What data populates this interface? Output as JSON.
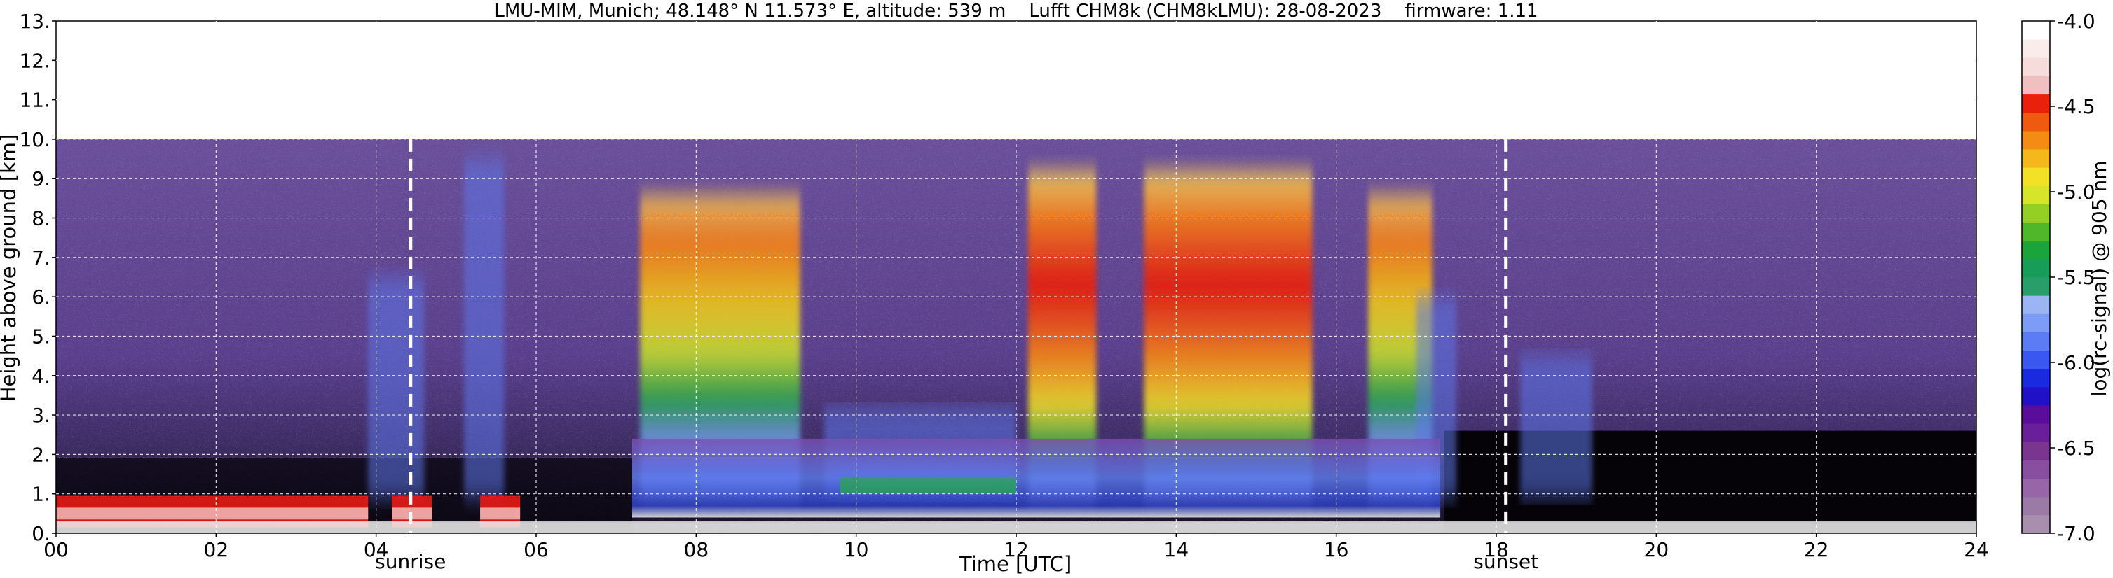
{
  "chart_data": {
    "type": "heatmap",
    "title": "LMU-MIM, Munich; 48.148° N 11.573° E, altitude: 539 m    Lufft CHM8k (CHM8kLMU): 28-08-2023    firmware: 1.11",
    "xlabel": "Time [UTC]",
    "ylabel": "Height above ground [km]",
    "xlim": [
      0,
      24
    ],
    "ylim": [
      0,
      13
    ],
    "x_ticks": [
      "00",
      "02",
      "04",
      "06",
      "08",
      "10",
      "12",
      "14",
      "16",
      "18",
      "20",
      "22",
      "24"
    ],
    "y_ticks": [
      "0.",
      "1.",
      "2.",
      "3.",
      "4.",
      "5.",
      "6.",
      "7.",
      "8.",
      "9.",
      "10.",
      "11.",
      "12.",
      "13."
    ],
    "grid": true,
    "signal_top_km": 10,
    "colorbar": {
      "label": "log(rc-signal) @ 905 nm",
      "range": [
        -7.0,
        -4.0
      ],
      "ticks": [
        "-4.0",
        "-4.5",
        "-5.0",
        "-5.5",
        "-6.0",
        "-6.5",
        "-7.0"
      ]
    },
    "events": [
      {
        "name": "sunrise",
        "time_utc": 4.43
      },
      {
        "name": "sunset",
        "time_utc": 18.12
      }
    ],
    "high_signal_periods_utc": [
      [
        7.3,
        9.3
      ],
      [
        12.15,
        13.0
      ],
      [
        13.6,
        15.7
      ],
      [
        16.4,
        17.2
      ]
    ],
    "low_cloud_periods_utc": [
      [
        0.0,
        3.9
      ],
      [
        4.2,
        4.7
      ],
      [
        5.3,
        5.8
      ]
    ]
  }
}
